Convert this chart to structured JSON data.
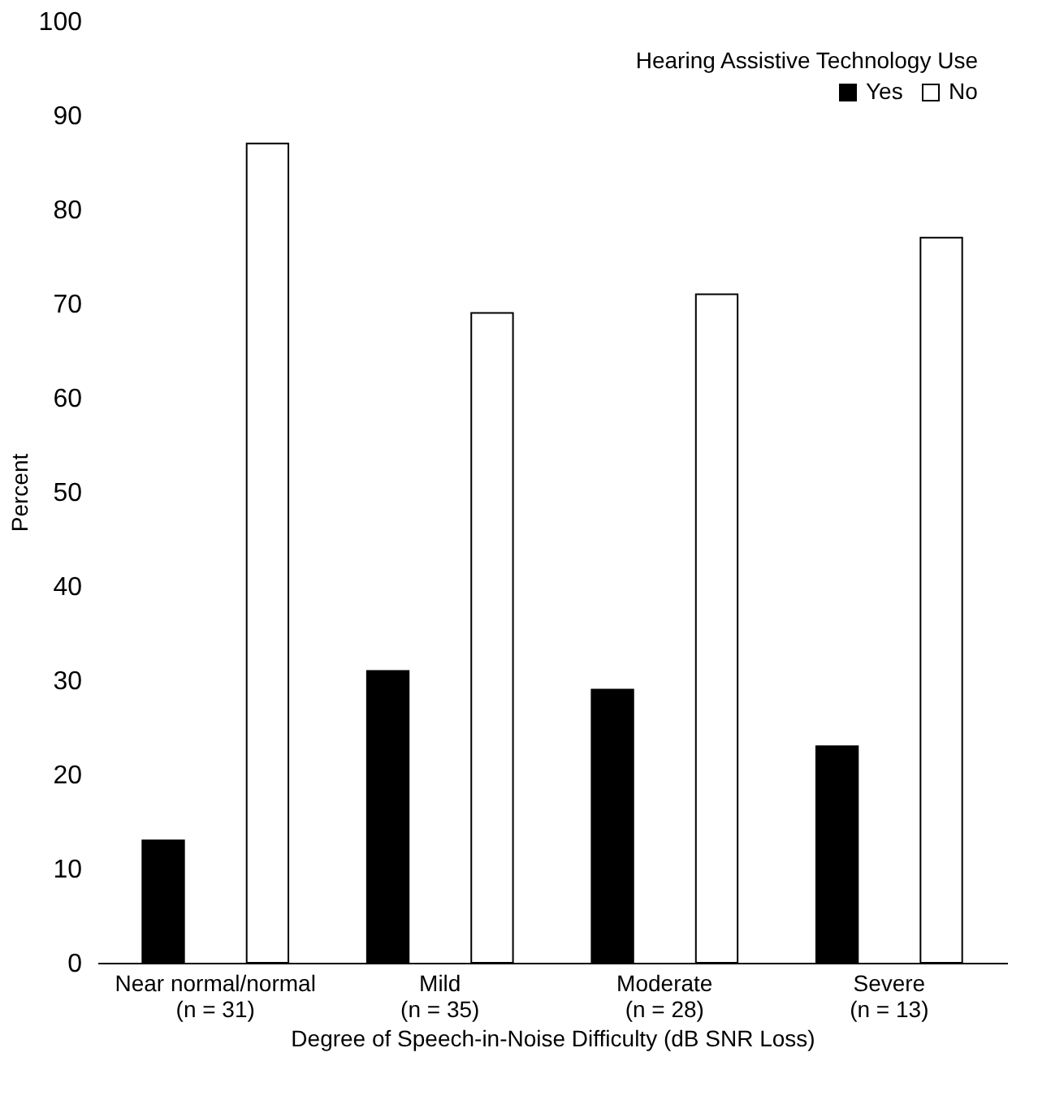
{
  "chart_data": {
    "type": "bar",
    "categories": [
      "Near normal/normal\n(n = 31)",
      "Mild\n(n = 35)",
      "Moderate\n(n = 28)",
      "Severe\n(n = 13)"
    ],
    "series": [
      {
        "name": "Yes",
        "color": "#000000",
        "values": [
          13,
          31,
          29,
          23
        ]
      },
      {
        "name": "No",
        "color": "#ffffff",
        "values": [
          87,
          69,
          71,
          77
        ]
      }
    ],
    "xlabel": "Degree of Speech-in-Noise Difficulty (dB SNR Loss)",
    "ylabel": "Percent",
    "legend_title": "Hearing Assistive Technology Use",
    "legend": "top right",
    "ylim": [
      0,
      100
    ],
    "yticks": [
      0,
      10,
      20,
      30,
      40,
      50,
      60,
      70,
      80,
      90,
      100
    ],
    "grid": false
  }
}
